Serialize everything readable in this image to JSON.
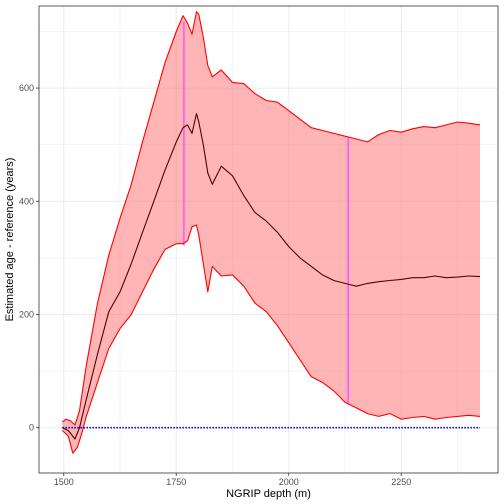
{
  "chart_data": {
    "type": "area",
    "xlabel": "NGRIP depth (m)",
    "ylabel": "Estimated age - reference (years)",
    "xlim": [
      1445,
      2465
    ],
    "ylim": [
      -80,
      745
    ],
    "x_ticks": [
      1500,
      1750,
      2000,
      2250
    ],
    "y_ticks": [
      0,
      200,
      400,
      600
    ],
    "grid": true,
    "legend": "none",
    "colors": {
      "band_fill": "#ff6b6b",
      "band_edge": "#ff0000",
      "median": "#550000",
      "markers": "#ff55ff",
      "reference": "#0000cc",
      "grid": "#ebebeb",
      "panel_border": "#333333"
    },
    "series": [
      {
        "role": "upper",
        "x": [
          1497,
          1505,
          1515,
          1525,
          1535,
          1550,
          1575,
          1600,
          1625,
          1650,
          1675,
          1700,
          1725,
          1750,
          1765,
          1775,
          1785,
          1795,
          1800,
          1810,
          1820,
          1830,
          1850,
          1875,
          1900,
          1925,
          1950,
          1975,
          2000,
          2025,
          2050,
          2075,
          2100,
          2125,
          2150,
          2175,
          2200,
          2225,
          2250,
          2275,
          2300,
          2325,
          2350,
          2375,
          2400,
          2425
        ],
        "y": [
          10,
          15,
          12,
          5,
          30,
          110,
          220,
          305,
          370,
          430,
          505,
          575,
          645,
          700,
          728,
          715,
          695,
          735,
          730,
          690,
          640,
          620,
          632,
          610,
          608,
          590,
          578,
          575,
          560,
          545,
          530,
          525,
          520,
          515,
          510,
          505,
          518,
          525,
          522,
          528,
          532,
          530,
          535,
          540,
          538,
          535
        ]
      },
      {
        "role": "median",
        "x": [
          1497,
          1510,
          1525,
          1535,
          1550,
          1575,
          1600,
          1625,
          1650,
          1675,
          1700,
          1725,
          1750,
          1765,
          1775,
          1785,
          1795,
          1800,
          1810,
          1820,
          1830,
          1850,
          1875,
          1900,
          1925,
          1950,
          1975,
          2000,
          2025,
          2050,
          2075,
          2100,
          2125,
          2150,
          2175,
          2200,
          2225,
          2250,
          2275,
          2300,
          2325,
          2350,
          2375,
          2400,
          2425
        ],
        "y": [
          0,
          -5,
          -20,
          0,
          50,
          130,
          205,
          240,
          290,
          345,
          400,
          455,
          505,
          530,
          535,
          520,
          555,
          540,
          500,
          450,
          430,
          462,
          445,
          410,
          380,
          365,
          345,
          320,
          300,
          285,
          270,
          260,
          255,
          250,
          255,
          258,
          260,
          262,
          265,
          265,
          268,
          265,
          266,
          268,
          267
        ]
      },
      {
        "role": "lower",
        "x": [
          1497,
          1510,
          1520,
          1530,
          1540,
          1550,
          1575,
          1600,
          1625,
          1650,
          1675,
          1700,
          1725,
          1750,
          1765,
          1775,
          1785,
          1795,
          1800,
          1810,
          1820,
          1830,
          1850,
          1875,
          1900,
          1925,
          1950,
          1975,
          2000,
          2025,
          2050,
          2075,
          2100,
          2125,
          2150,
          2175,
          2200,
          2225,
          2250,
          2275,
          2300,
          2325,
          2350,
          2375,
          2400,
          2425
        ],
        "y": [
          -5,
          -15,
          -45,
          -35,
          -10,
          20,
          80,
          140,
          175,
          200,
          240,
          280,
          315,
          325,
          325,
          330,
          355,
          358,
          340,
          290,
          240,
          285,
          268,
          270,
          250,
          220,
          205,
          180,
          150,
          120,
          90,
          80,
          65,
          45,
          35,
          25,
          20,
          25,
          15,
          18,
          20,
          15,
          18,
          20,
          22,
          20
        ]
      },
      {
        "role": "markers",
        "x": [
          1767,
          2132
        ],
        "y_from": [
          322,
          42
        ],
        "y_to": [
          718,
          512
        ]
      },
      {
        "role": "reference",
        "x": [
          1497,
          2425
        ],
        "y": [
          0,
          0
        ]
      }
    ]
  }
}
